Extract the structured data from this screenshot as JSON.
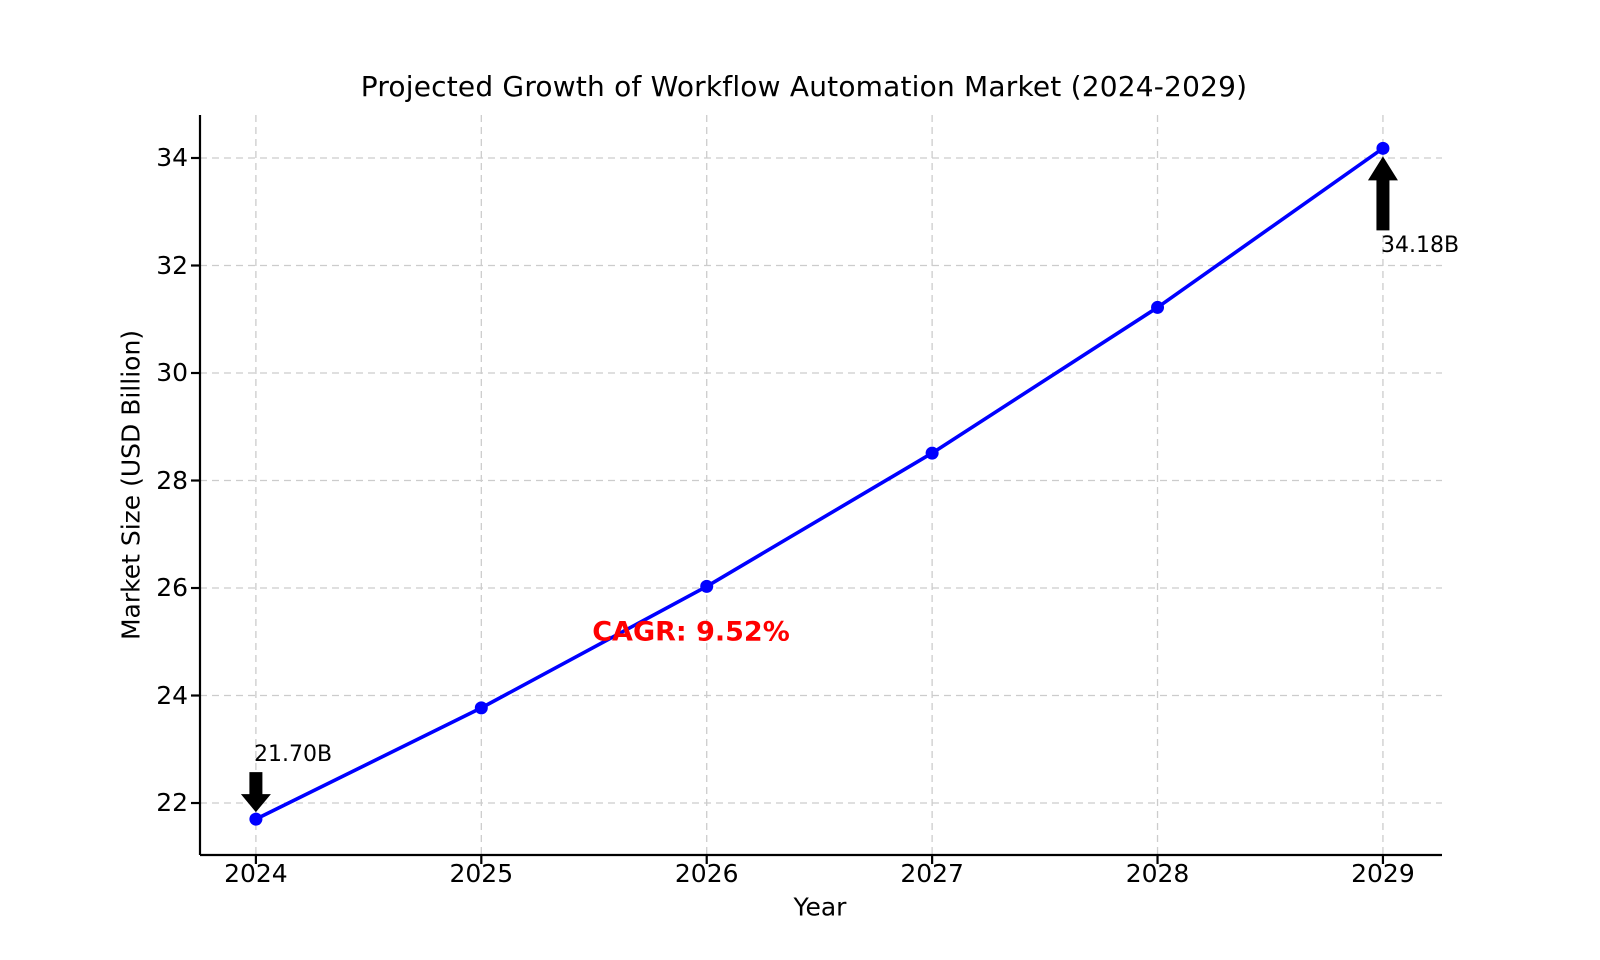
{
  "title": "Projected Growth of Workflow Automation Market (2024-2029)",
  "colors": {
    "line": "#0000ff",
    "marker": "#0000ff",
    "grid": "#cccccc",
    "axis": "#000000",
    "arrow": "#000000",
    "annotation_text": "#000000",
    "cagr_text": "#ff0000",
    "background": "#ffffff"
  },
  "chart_data": {
    "type": "line",
    "title": "Projected Growth of Workflow Automation Market (2024-2029)",
    "xlabel": "Year",
    "ylabel": "Market Size (USD Billion)",
    "x": [
      2024,
      2025,
      2026,
      2027,
      2028,
      2029
    ],
    "values": [
      21.7,
      23.77,
      26.03,
      28.51,
      31.22,
      34.18
    ],
    "xticks": [
      2024,
      2025,
      2026,
      2027,
      2028,
      2029
    ],
    "yticks": [
      22,
      24,
      26,
      28,
      30,
      32,
      34
    ],
    "xlim": [
      2023.752,
      2029.262
    ],
    "ylim": [
      21.033,
      34.8
    ],
    "grid": true,
    "grid_style": "dashed",
    "legend": false,
    "marker": "circle",
    "annotations": [
      {
        "x": 2024,
        "y": 21.7,
        "label": "21.70B",
        "arrow": "down"
      },
      {
        "x": 2029,
        "y": 34.18,
        "label": "34.18B",
        "arrow": "up"
      },
      {
        "x": 2025.93,
        "y": 25.16,
        "label": "CAGR: 9.52%",
        "arrow": "none"
      }
    ]
  }
}
